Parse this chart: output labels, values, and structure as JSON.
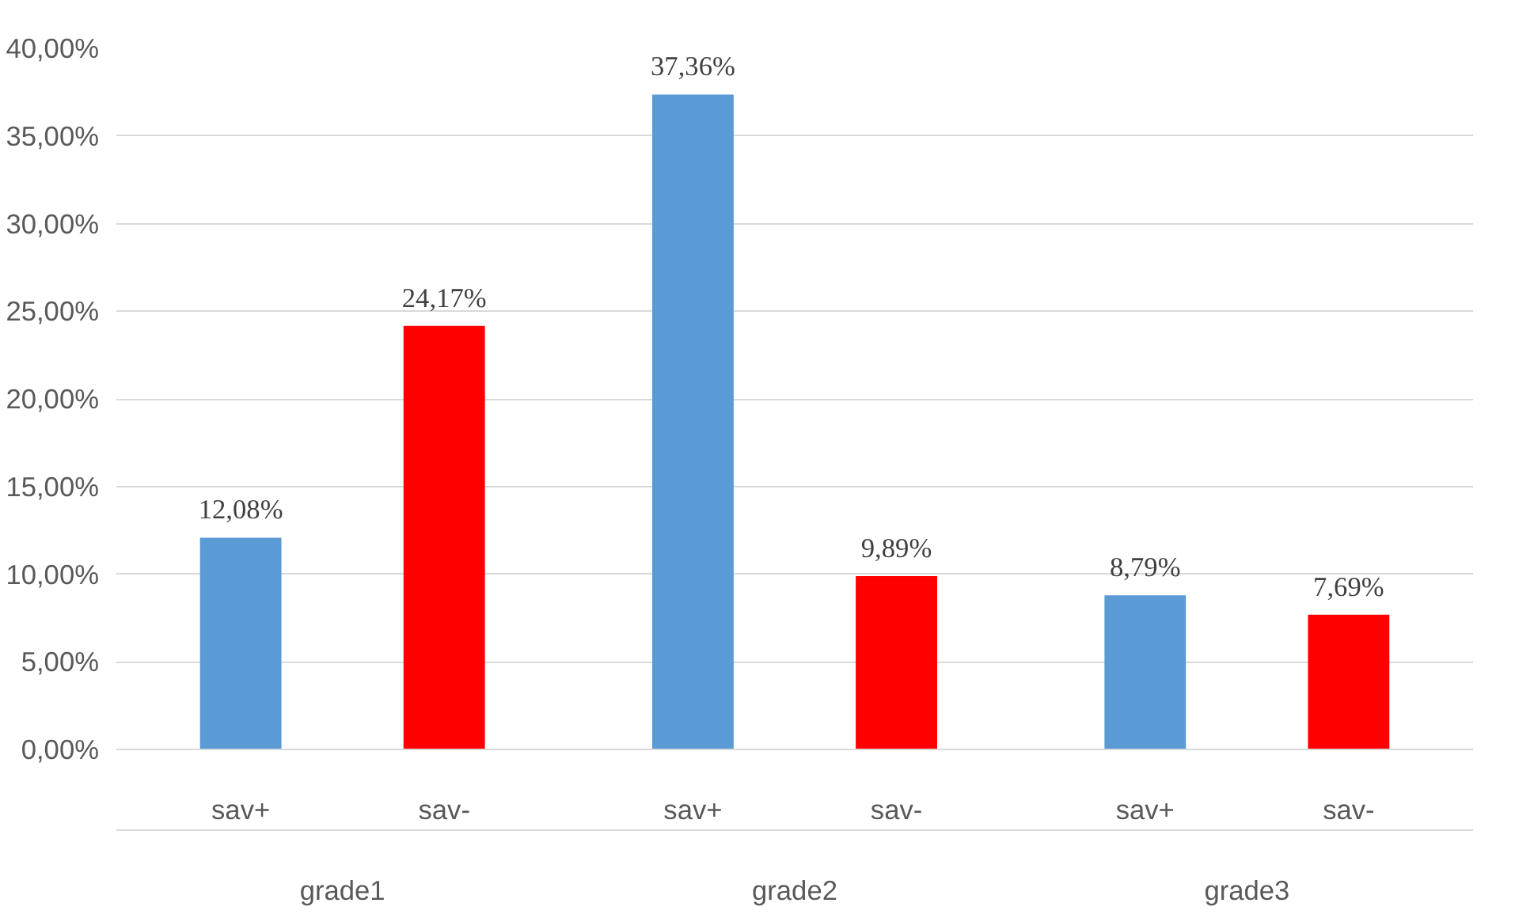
{
  "chart_data": {
    "type": "bar",
    "categories": [
      "grade1",
      "grade2",
      "grade3"
    ],
    "series": [
      {
        "name": "sav+",
        "color": "#5b9bd5",
        "values": [
          12.08,
          37.36,
          8.79
        ],
        "value_labels": [
          "12,08%",
          "37,36%",
          "8,79%"
        ]
      },
      {
        "name": "sav-",
        "color": "#ff0000",
        "values": [
          24.17,
          9.89,
          7.69
        ],
        "value_labels": [
          "24,17%",
          "9,89%",
          "7,69%"
        ]
      }
    ],
    "ylim": [
      0,
      40
    ],
    "yticks": [
      {
        "value": 0,
        "label": "0,00%"
      },
      {
        "value": 5,
        "label": "5,00%"
      },
      {
        "value": 10,
        "label": "10,00%"
      },
      {
        "value": 15,
        "label": "15,00%"
      },
      {
        "value": 20,
        "label": "20,00%"
      },
      {
        "value": 25,
        "label": "25,00%"
      },
      {
        "value": 30,
        "label": "30,00%"
      },
      {
        "value": 35,
        "label": "35,00%"
      },
      {
        "value": 40,
        "label": "40,00%"
      }
    ],
    "grid": "y",
    "legend": false
  }
}
